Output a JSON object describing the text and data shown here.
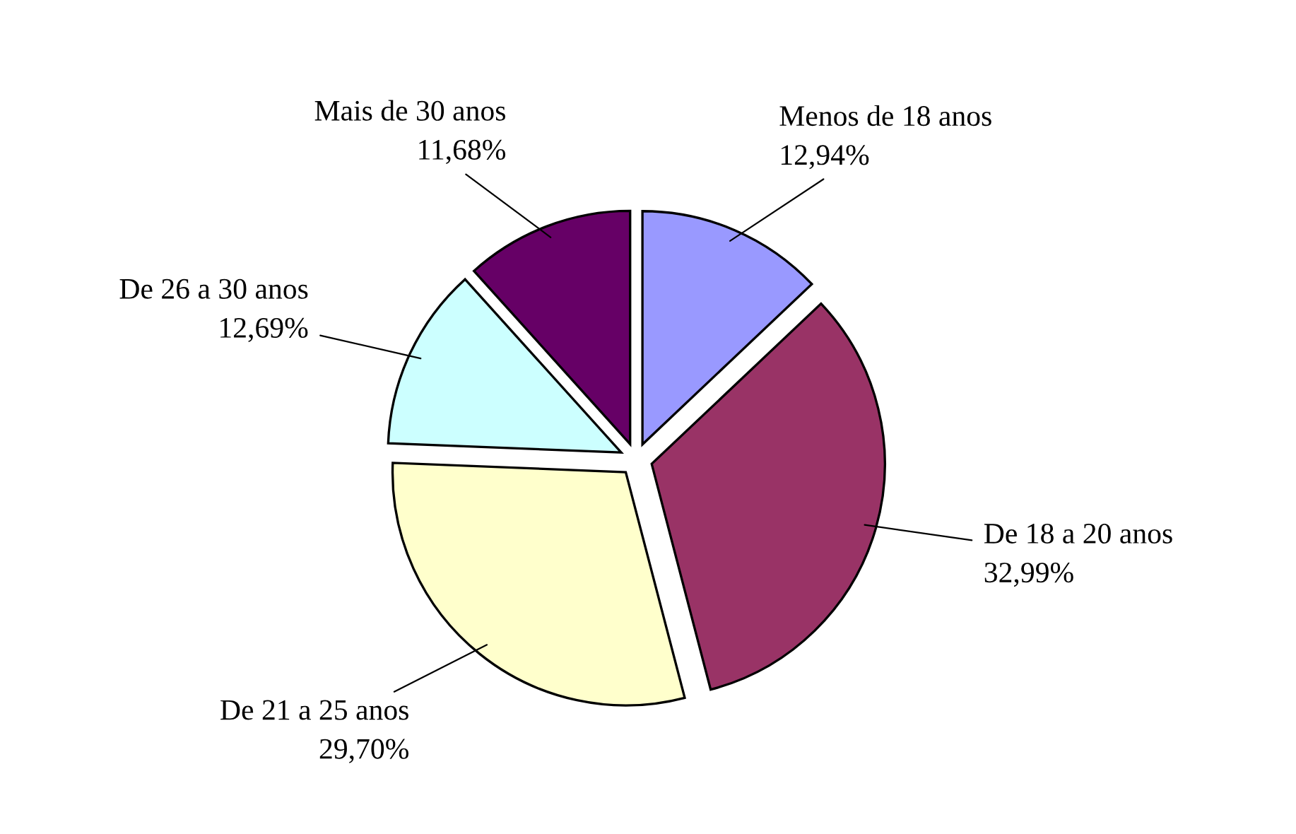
{
  "chart_data": {
    "type": "pie",
    "categories": [
      "Menos de 18 anos",
      "De 18 a 20 anos",
      "De 21 a 25 anos",
      "De 26 a 30 anos",
      "Mais de 30 anos"
    ],
    "values": [
      12.94,
      32.99,
      29.7,
      12.69,
      11.68
    ],
    "value_labels": [
      "12,94%",
      "32,99%",
      "29,70%",
      "12,69%",
      "11,68%"
    ],
    "colors": [
      "#9999ff",
      "#993366",
      "#ffffcc",
      "#ccffff",
      "#660066"
    ],
    "legend": false
  }
}
